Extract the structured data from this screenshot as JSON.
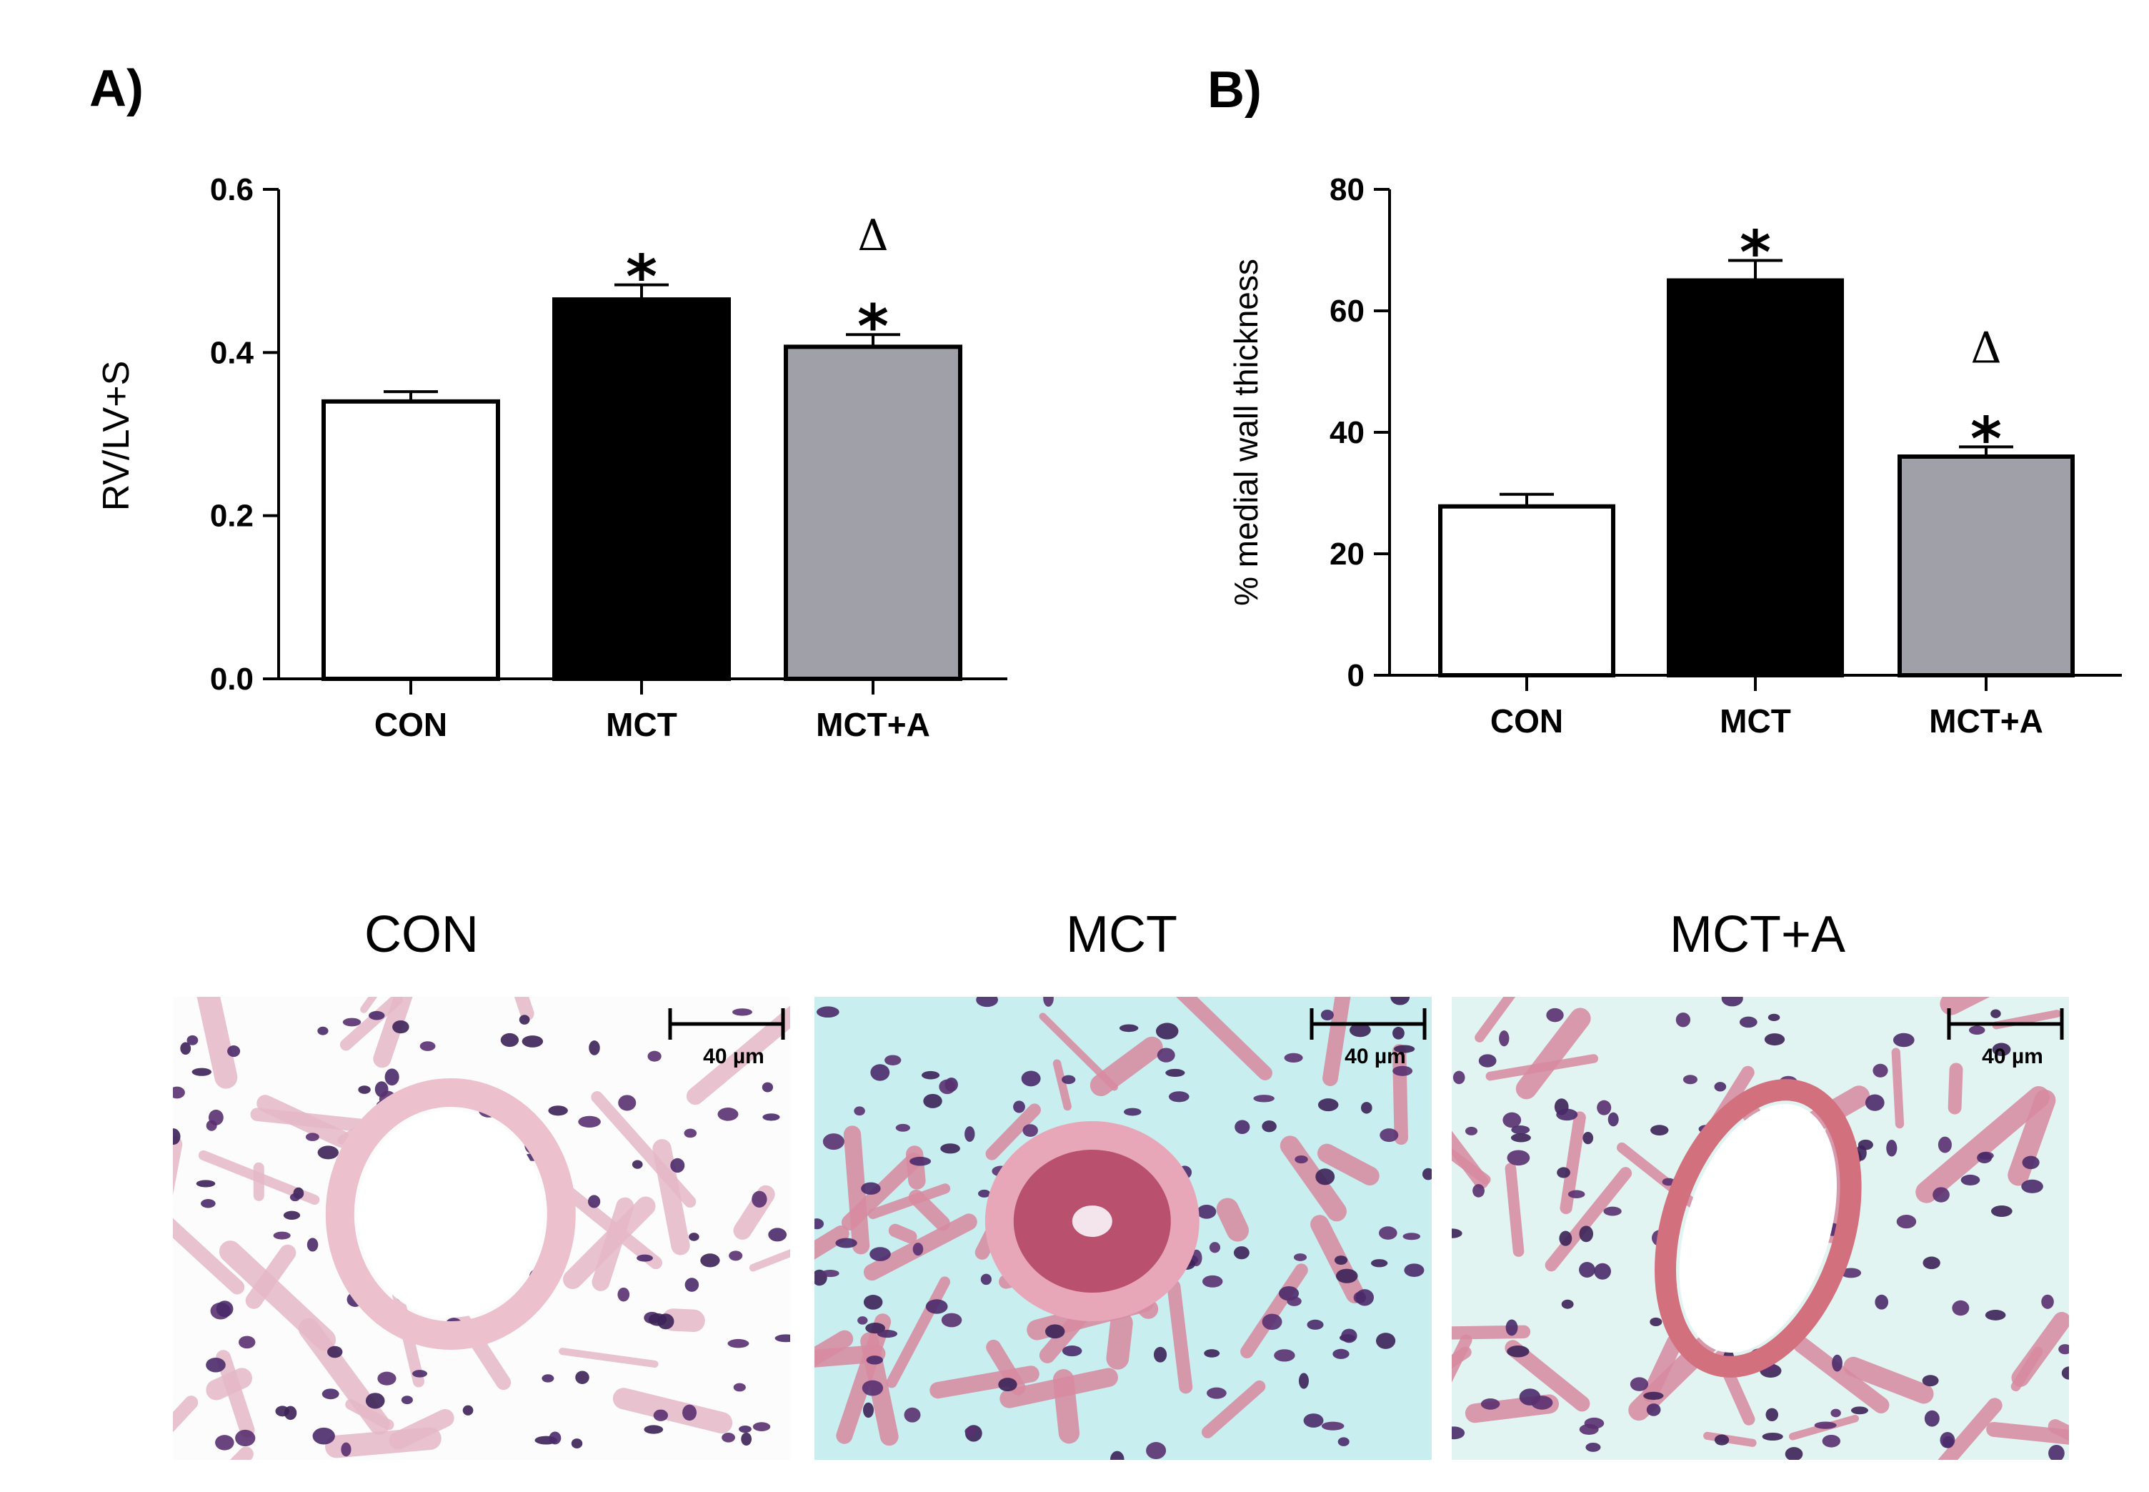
{
  "panels": [
    {
      "letter": "A)",
      "chart_data": {
        "type": "bar",
        "categories": [
          "CON",
          "MCT",
          "MCT+A"
        ],
        "values": [
          0.34,
          0.465,
          0.407
        ],
        "errors": [
          0.012,
          0.018,
          0.015
        ],
        "colors": [
          "#ffffff",
          "#000000",
          "#a0a0a8"
        ],
        "ylabel": "RV/LV+S",
        "xlabel": "",
        "ylim": [
          0,
          0.6
        ],
        "yticks": [
          0.0,
          0.2,
          0.4,
          0.6
        ],
        "ytick_labels": [
          "0.0",
          "0.2",
          "0.4",
          "0.6"
        ],
        "grid": false,
        "annotations": [
          {
            "category": "MCT",
            "symbols": [
              "*"
            ]
          },
          {
            "category": "MCT+A",
            "symbols": [
              "Δ",
              "*"
            ]
          }
        ]
      }
    },
    {
      "letter": "B)",
      "chart_data": {
        "type": "bar",
        "categories": [
          "CON",
          "MCT",
          "MCT+A"
        ],
        "values": [
          27.8,
          65.0,
          36.0
        ],
        "errors": [
          2.0,
          3.3,
          1.6
        ],
        "colors": [
          "#ffffff",
          "#000000",
          "#a0a0a8"
        ],
        "ylabel": "% medial wall thickness",
        "xlabel": "",
        "ylim": [
          0,
          80
        ],
        "yticks": [
          0,
          20,
          40,
          60,
          80
        ],
        "ytick_labels": [
          "0",
          "20",
          "40",
          "60",
          "80"
        ],
        "grid": false,
        "annotations": [
          {
            "category": "MCT",
            "symbols": [
              "*"
            ]
          },
          {
            "category": "MCT+A",
            "symbols": [
              "Δ",
              "*"
            ]
          }
        ]
      }
    }
  ],
  "micrographs": [
    {
      "title": "CON",
      "scale_label": "40 µm",
      "background": "#fdfcfd",
      "vessel_color": "#ecc0cc"
    },
    {
      "title": "MCT",
      "scale_label": "40 µm",
      "background": "#c8eef0",
      "vessel_color": "#b8506e"
    },
    {
      "title": "MCT+A",
      "scale_label": "40 µm",
      "background": "#e2f4f2",
      "vessel_color": "#d2707e"
    }
  ]
}
